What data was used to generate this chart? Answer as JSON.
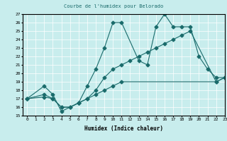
{
  "title": "Courbe de l'humidex pour Belorado",
  "xlabel": "Humidex (Indice chaleur)",
  "xlim": [
    -0.5,
    23
  ],
  "ylim": [
    15,
    27
  ],
  "yticks": [
    15,
    16,
    17,
    18,
    19,
    20,
    21,
    22,
    23,
    24,
    25,
    26,
    27
  ],
  "xticks": [
    0,
    1,
    2,
    3,
    4,
    5,
    6,
    7,
    8,
    9,
    10,
    11,
    12,
    13,
    14,
    15,
    16,
    17,
    18,
    19,
    20,
    21,
    22,
    23
  ],
  "bg_color": "#c8eded",
  "line_color": "#1a6b6b",
  "line1_x": [
    0,
    2,
    3,
    4,
    6,
    7,
    8,
    9,
    10,
    11,
    13,
    14,
    15,
    16,
    17,
    18,
    19,
    20,
    21,
    22,
    23
  ],
  "line1_y": [
    17,
    18.5,
    17.5,
    15.5,
    16.5,
    18.5,
    20.5,
    23.0,
    26.0,
    26.0,
    21.5,
    21.0,
    25.5,
    27.0,
    25.5,
    25.5,
    25.5,
    22.0,
    20.5,
    19.5,
    19.5
  ],
  "line2_x": [
    0,
    2,
    3,
    4,
    5,
    6,
    7,
    8,
    9,
    10,
    11,
    12,
    13,
    14,
    15,
    16,
    17,
    18,
    19,
    22,
    23
  ],
  "line2_y": [
    17,
    17.5,
    17.0,
    16.0,
    16.0,
    16.5,
    17.0,
    18.0,
    19.5,
    20.5,
    21.0,
    21.5,
    22.0,
    22.5,
    23.0,
    23.5,
    24.0,
    24.5,
    25.0,
    19.0,
    19.5
  ],
  "line3_x": [
    0,
    2,
    3,
    4,
    5,
    6,
    7,
    8,
    9,
    10,
    11,
    22,
    23
  ],
  "line3_y": [
    17,
    17.2,
    17.0,
    16.0,
    16.0,
    16.5,
    17.0,
    17.5,
    18.0,
    18.5,
    19.0,
    19.0,
    19.5
  ]
}
